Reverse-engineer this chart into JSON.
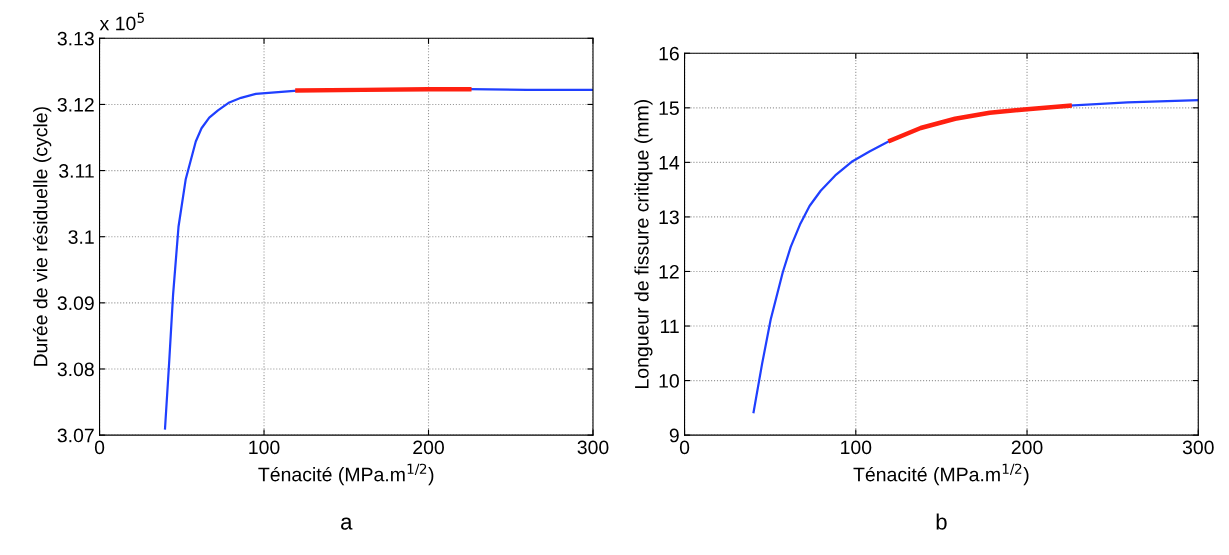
{
  "chart_data": [
    {
      "type": "line",
      "xlabel": "Ténacité (MPa.m$^{1/2}$)",
      "ylabel": "Durée de vie résiduelle (cycle)",
      "xlim": [
        0,
        300
      ],
      "xticks": [
        0,
        100,
        200,
        300
      ],
      "ylim": [
        3.07,
        3.13
      ],
      "yticks": [
        3.07,
        3.08,
        3.09,
        3.1,
        3.11,
        3.12,
        3.13
      ],
      "grid": true,
      "line_style": "solid",
      "annotations": [
        "x 10$^{5}$",
        "a"
      ],
      "series": [
        {
          "color": "#1f3fff",
          "x": [
            39.8,
            42.3,
            44.7,
            48,
            52.4,
            58.5,
            62,
            66.7,
            72,
            78.9,
            86,
            95,
            120.3,
            160,
            224.8,
            260,
            300
          ],
          "values": [
            3.071,
            3.0809,
            3.0912,
            3.1015,
            3.1087,
            3.1144,
            3.1164,
            3.118,
            3.1191,
            3.1203,
            3.121,
            3.1216,
            3.1221,
            null,
            3.1223,
            3.1222,
            3.1222
          ]
        },
        {
          "color": "#ff2010",
          "x": [
            120.3,
            160,
            200,
            224.8
          ],
          "values": [
            3.1221,
            3.1222,
            3.1223,
            3.1223
          ]
        }
      ]
    },
    {
      "type": "line",
      "xlabel": "Ténacité (MPa.m$^{1/2}$)",
      "ylabel": "Longueur de fissure critique (mm)",
      "xlim": [
        0,
        300
      ],
      "xticks": [
        0,
        100,
        200,
        300
      ],
      "ylim": [
        9,
        16
      ],
      "yticks": [
        9,
        10,
        11,
        12,
        13,
        14,
        15,
        16
      ],
      "grid": true,
      "line_style": "solid",
      "annotations": [
        "b"
      ],
      "series": [
        {
          "color": "#1f3fff",
          "x": [
            40.3,
            45.3,
            50.3,
            57.4,
            62,
            67.4,
            73,
            79.5,
            88,
            97.6,
            108,
            120.2,
            137.9,
            158,
            178.2,
            198.3,
            224.9,
            258.7,
            300
          ],
          "values": [
            9.42,
            10.31,
            11.12,
            11.99,
            12.45,
            12.86,
            13.2,
            13.48,
            13.76,
            14.01,
            14.2,
            14.4,
            null,
            null,
            null,
            null,
            15.04,
            15.1,
            15.14
          ]
        },
        {
          "color": "#ff2010",
          "x": [
            120.2,
            137.9,
            158,
            178.2,
            198.3,
            224.9
          ],
          "values": [
            14.4,
            14.63,
            14.8,
            14.91,
            14.97,
            15.04
          ]
        }
      ]
    }
  ]
}
